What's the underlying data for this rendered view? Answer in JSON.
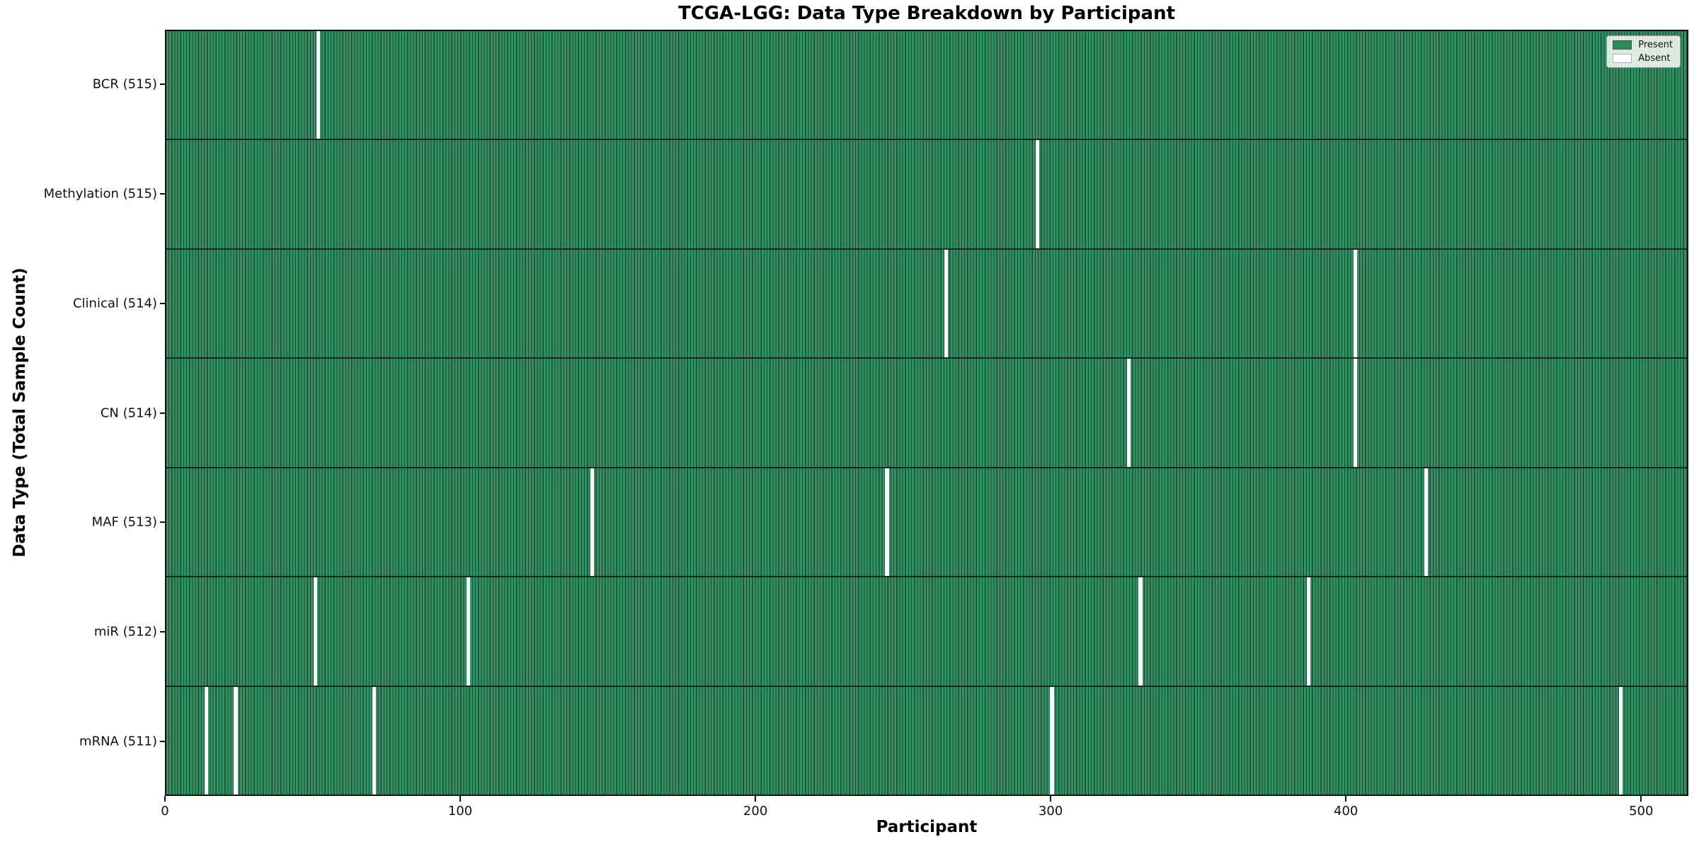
{
  "chart_data": {
    "type": "heatmap",
    "title": "TCGA-LGG: Data Type Breakdown by Participant",
    "xlabel": "Participant",
    "ylabel": "Data Type (Total Sample Count)",
    "x_ticks": [
      "0",
      "100",
      "200",
      "300",
      "400",
      "500"
    ],
    "x_range": [
      0,
      516
    ],
    "n_participants": 516,
    "grid": false,
    "legend_position": "upper-right",
    "legend": {
      "items": [
        {
          "label": "Present",
          "color": "#2e8b57"
        },
        {
          "label": "Absent",
          "color": "#ffffff"
        }
      ]
    },
    "rows": [
      {
        "label": "BCR (515)",
        "data_type": "BCR",
        "present_count": 515,
        "absent_participants": [
          51
        ]
      },
      {
        "label": "Methylation (515)",
        "data_type": "Methylation",
        "present_count": 515,
        "absent_participants": [
          295
        ]
      },
      {
        "label": "Clinical (514)",
        "data_type": "Clinical",
        "present_count": 514,
        "absent_participants": [
          264,
          403
        ]
      },
      {
        "label": "CN (514)",
        "data_type": "CN",
        "present_count": 514,
        "absent_participants": [
          326,
          403
        ]
      },
      {
        "label": "MAF (513)",
        "data_type": "MAF",
        "present_count": 513,
        "absent_participants": [
          144,
          244,
          427
        ]
      },
      {
        "label": "miR (512)",
        "data_type": "miR",
        "present_count": 512,
        "absent_participants": [
          50,
          102,
          330,
          387
        ]
      },
      {
        "label": "mRNA (511)",
        "data_type": "mRNA",
        "present_count": 511,
        "absent_participants": [
          13,
          23,
          70,
          300,
          493
        ]
      }
    ],
    "colors": {
      "present": "#2e8b57",
      "cell_fill": "#349065",
      "cell_edge": "#1a4a30",
      "absent": "#ffffff",
      "row_divider": "#142a1e",
      "plot_border": "#0e0e0e",
      "text": "#111111"
    }
  }
}
